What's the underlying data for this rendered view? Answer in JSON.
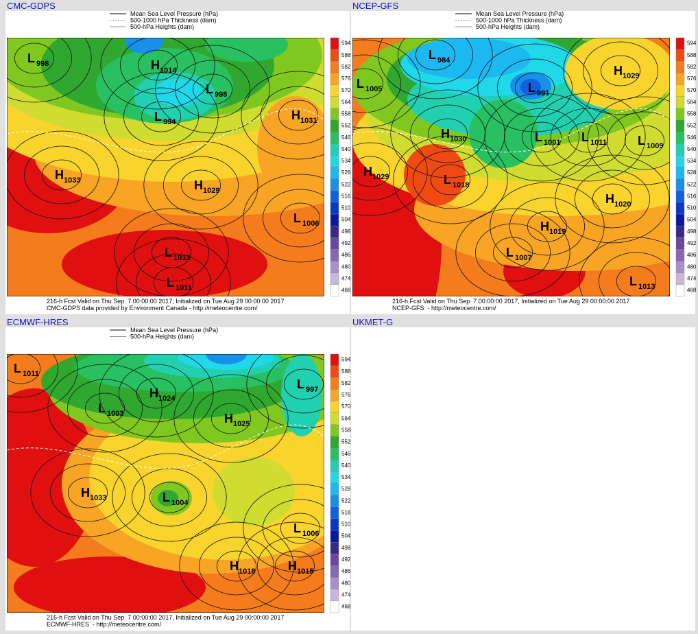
{
  "panels": [
    {
      "title": "CMC-GDPS",
      "legend": [
        "Mean Sea Level Pressure (hPa)",
        "500-1000 hPa Thickness (dam)",
        "500-hPa Heights (dam)"
      ],
      "footer": [
        "216-h Fcst Valid on Thu Sep  7 00:00:00 2017, Initialized on Tue Aug 29 00:00:00 2017",
        "CMC-GDPS data provided by Environment Canada - http://meteocentre.com/"
      ],
      "centers": [
        {
          "letter": "L",
          "value": "998"
        },
        {
          "letter": "H",
          "value": "1014"
        },
        {
          "letter": "L",
          "value": "998"
        },
        {
          "letter": "L",
          "value": "994"
        },
        {
          "letter": "H",
          "value": "1031"
        },
        {
          "letter": "H",
          "value": "1033"
        },
        {
          "letter": "H",
          "value": "1029"
        },
        {
          "letter": "L",
          "value": "1006"
        },
        {
          "letter": "L",
          "value": "1012"
        },
        {
          "letter": "L",
          "value": "1011"
        }
      ]
    },
    {
      "title": "NCEP-GFS",
      "legend": [
        "Mean Sea Level Pressure (hPa)",
        "500-1000 hPa Thickness (dam)",
        "500-hPa Heights (dam)"
      ],
      "footer": [
        "216-h Fcst Valid on Thu Sep  7 00:00:00 2017, Initialized on Tue Aug 29 00:00:00 2017",
        "NCEP-GFS  - http://meteocentre.com/"
      ],
      "centers": [
        {
          "letter": "L",
          "value": "984"
        },
        {
          "letter": "H",
          "value": "1029"
        },
        {
          "letter": "L",
          "value": "1005"
        },
        {
          "letter": "L",
          "value": "991"
        },
        {
          "letter": "H",
          "value": "1030"
        },
        {
          "letter": "L",
          "value": "1001"
        },
        {
          "letter": "L",
          "value": "1011"
        },
        {
          "letter": "L",
          "value": "1009"
        },
        {
          "letter": "H",
          "value": "1029"
        },
        {
          "letter": "L",
          "value": "1018"
        },
        {
          "letter": "H",
          "value": "1020"
        },
        {
          "letter": "H",
          "value": "1019"
        },
        {
          "letter": "L",
          "value": "1007"
        },
        {
          "letter": "L",
          "value": "1013"
        }
      ]
    },
    {
      "title": "ECMWF-HRES",
      "legend": [
        "Mean Sea Level Pressure (hPa)",
        "500-hPa Heights (dam)"
      ],
      "footer": [
        "216-h Fcst Valid on Thu Sep  7 00:00:00 2017, Initialized on Tue Aug 29 00:00:00 2017",
        "ECMWF-HRES  - http://meteocentre.com/"
      ],
      "centers": [
        {
          "letter": "L",
          "value": "1011"
        },
        {
          "letter": "H",
          "value": "1024"
        },
        {
          "letter": "L",
          "value": "997"
        },
        {
          "letter": "L",
          "value": "1003"
        },
        {
          "letter": "H",
          "value": "1025"
        },
        {
          "letter": "H",
          "value": "1033"
        },
        {
          "letter": "L",
          "value": "1004"
        },
        {
          "letter": "L",
          "value": "1006"
        },
        {
          "letter": "H",
          "value": "1018"
        },
        {
          "letter": "H",
          "value": "1015"
        }
      ]
    },
    {
      "title": "UKMET-G"
    }
  ],
  "colorbar": {
    "levels": [
      594,
      588,
      582,
      576,
      570,
      564,
      558,
      552,
      546,
      540,
      534,
      528,
      522,
      516,
      510,
      504,
      498,
      492,
      486,
      480,
      474,
      468
    ],
    "colors": [
      "#e01010",
      "#f04a14",
      "#f47c1c",
      "#f8a424",
      "#f8d42c",
      "#d0dc30",
      "#80c820",
      "#30a830",
      "#28c060",
      "#20d0b0",
      "#20d8e8",
      "#1cb8f0",
      "#1890e8",
      "#1060e0",
      "#0838c8",
      "#0818a0",
      "#382888",
      "#6848a0",
      "#8868b0",
      "#a890c8",
      "#c8b8d8",
      "#ffffff"
    ]
  }
}
